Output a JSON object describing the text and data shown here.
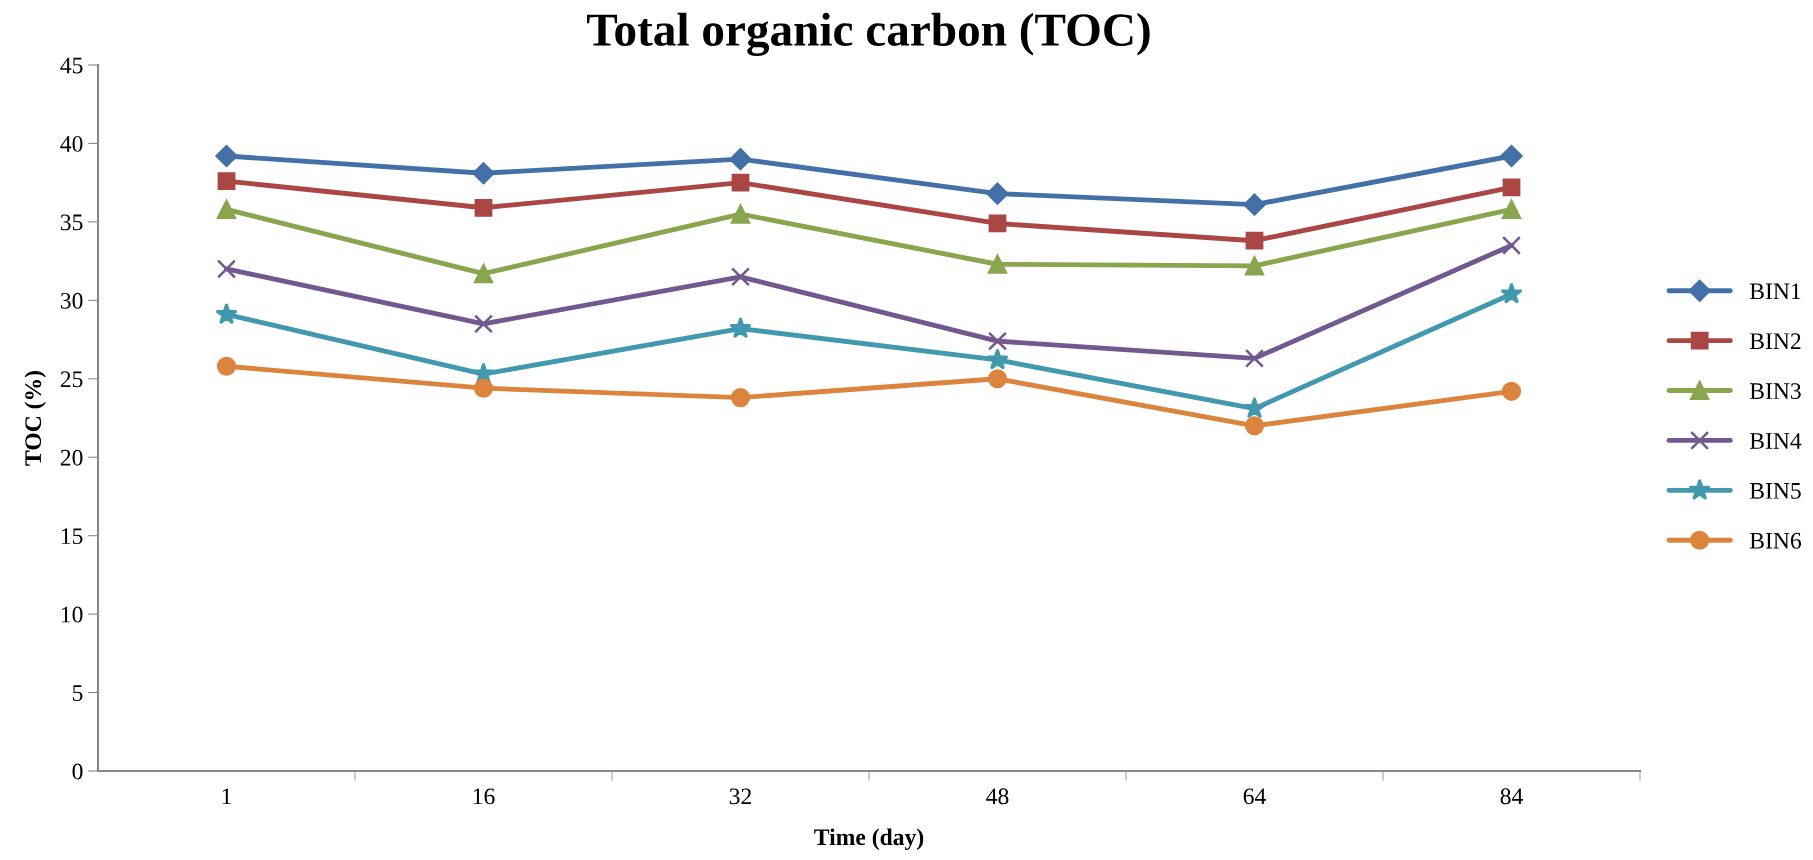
{
  "chart_data": {
    "type": "line",
    "title": "Total organic carbon (TOC)",
    "xlabel": "Time (day)",
    "ylabel": "TOC (%)",
    "categories": [
      "1",
      "16",
      "32",
      "48",
      "64",
      "84"
    ],
    "ylim": [
      0,
      45
    ],
    "yticks": [
      0,
      5,
      10,
      15,
      20,
      25,
      30,
      35,
      40,
      45
    ],
    "grid": false,
    "legend": "right",
    "series": [
      {
        "name": "BIN1",
        "color": "#4470a8",
        "marker": "diamond",
        "values": [
          39.2,
          38.1,
          39.0,
          36.8,
          36.1,
          39.2
        ]
      },
      {
        "name": "BIN2",
        "color": "#aa4643",
        "marker": "square",
        "values": [
          37.6,
          35.9,
          37.5,
          34.9,
          33.8,
          37.2
        ]
      },
      {
        "name": "BIN3",
        "color": "#89a54e",
        "marker": "triangle",
        "values": [
          35.8,
          31.7,
          35.5,
          32.3,
          32.2,
          35.8
        ]
      },
      {
        "name": "BIN4",
        "color": "#71588f",
        "marker": "cross",
        "values": [
          32.0,
          28.5,
          31.5,
          27.4,
          26.3,
          33.5
        ]
      },
      {
        "name": "BIN5",
        "color": "#4198af",
        "marker": "star",
        "values": [
          29.1,
          25.3,
          28.2,
          26.2,
          23.1,
          30.4
        ]
      },
      {
        "name": "BIN6",
        "color": "#db843d",
        "marker": "circle",
        "values": [
          25.8,
          24.4,
          23.8,
          25.0,
          22.0,
          24.2
        ]
      }
    ]
  }
}
